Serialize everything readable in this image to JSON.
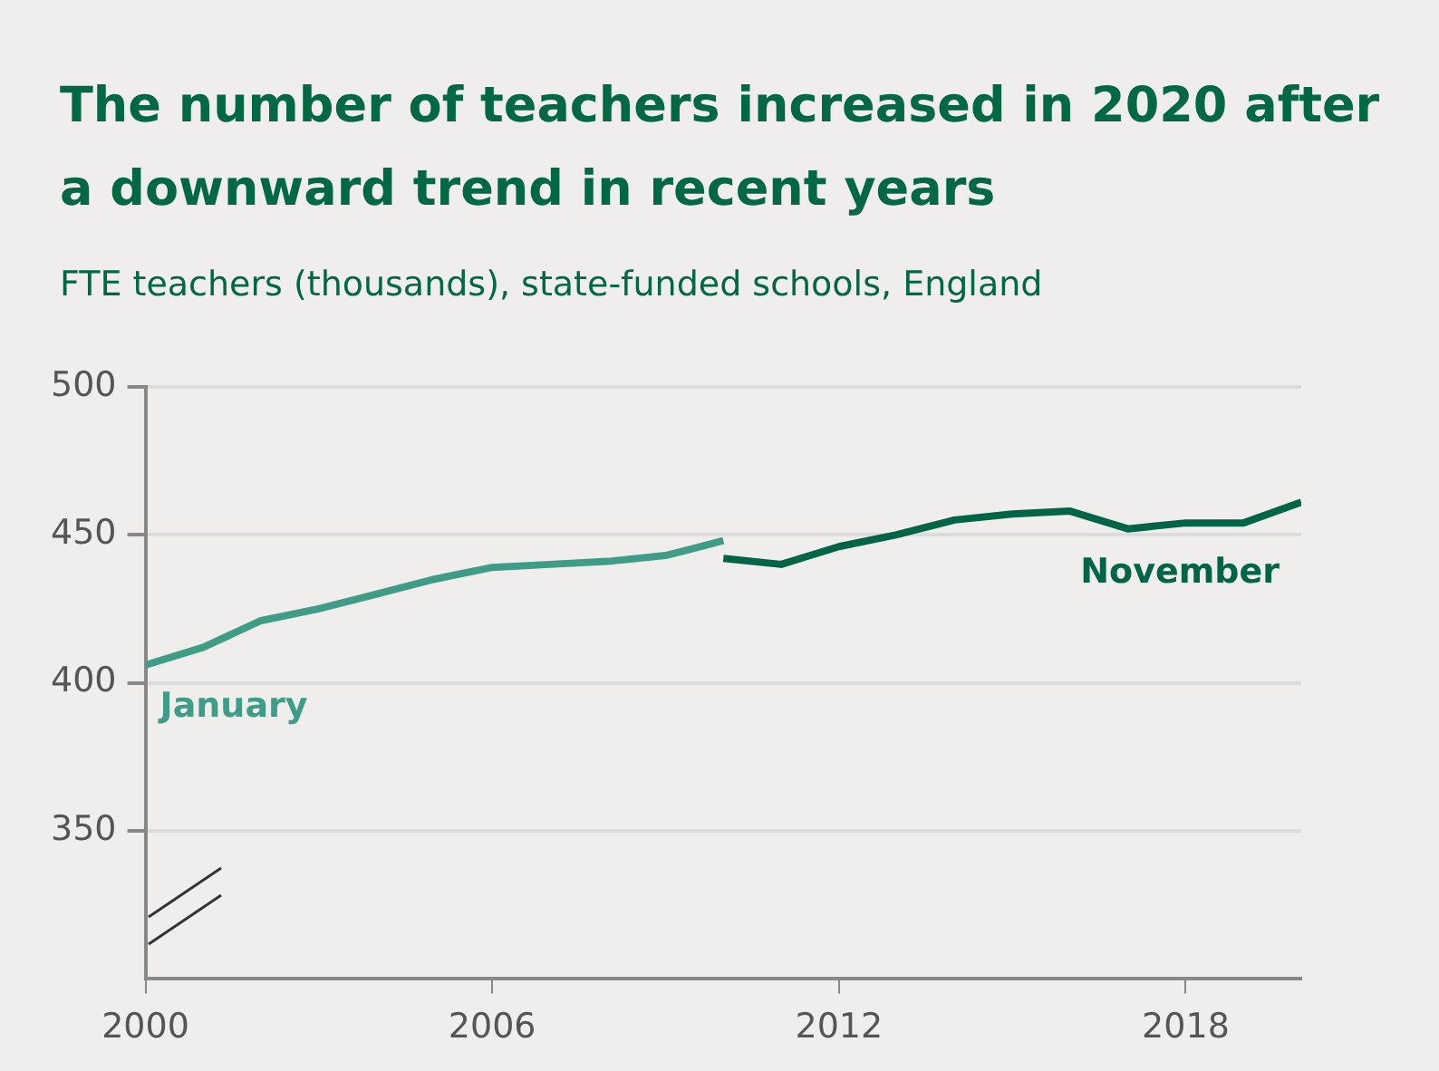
{
  "chart_data": {
    "type": "line",
    "title": "The number of teachers increased in 2020 after a downward trend in recent years",
    "subtitle": "FTE teachers (thousands), state-funded schools, England",
    "series": [
      {
        "name": "January",
        "color": "#3f9c86",
        "x": [
          2000,
          2001,
          2002,
          2003,
          2004,
          2005,
          2006,
          2007,
          2008,
          2009,
          2010
        ],
        "values": [
          406,
          412,
          421,
          425,
          430,
          435,
          439,
          440,
          441,
          443,
          448
        ]
      },
      {
        "name": "November",
        "color": "#006446",
        "x": [
          2010,
          2011,
          2012,
          2013,
          2014,
          2015,
          2016,
          2017,
          2018,
          2019,
          2020
        ],
        "values": [
          442,
          440,
          446,
          450,
          455,
          457,
          458,
          452,
          454,
          454,
          461
        ]
      }
    ],
    "xlim": [
      2000,
      2020
    ],
    "xticks": [
      2000,
      2006,
      2012,
      2018
    ],
    "ylim": [
      300,
      500
    ],
    "yticks": [
      350,
      400,
      450,
      500
    ],
    "grid": "y",
    "legend": false
  }
}
